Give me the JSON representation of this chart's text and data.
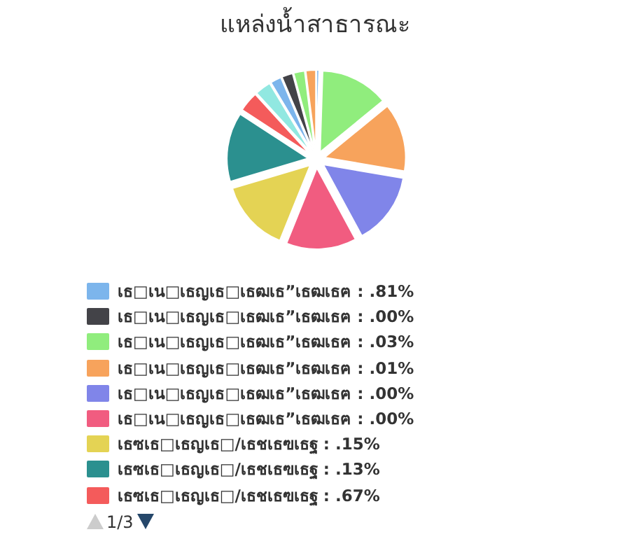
{
  "chart_data": {
    "type": "pie",
    "title": "แหล่งน้ำสาธารณะ",
    "categories": [
      "เธ□เน□เธญเธ□เธฒเธ”เธฒเธฅ : .81%",
      "เธ□เน□เธญเธ□เธฒเธ”เธฒเธฅ : .00%",
      "เธ□เน□เธญเธ□เธฒเธ”เธฒเธฅ : .03%",
      "เธ□เน□เธญเธ□เธฒเธ”เธฒเธฅ : .01%",
      "เธ□เน□เธญเธ□เธฒเธ”เธฒเธฅ : .00%",
      "เธ□เน□เธญเธ□เธฒเธ”เธฒเธฅ : .00%",
      "เธซเธ□เธญเธ□/เธชเธฃเธฐ : .15%",
      "เธซเธ□เธญเธ□/เธชเธฃเธฐ : .13%",
      "เธซเธ□เธญเธ□/เธชเธฃเธฐ : .67%",
      null,
      null,
      null,
      null,
      null
    ],
    "values": [
      0.5,
      0,
      13.6,
      13.6,
      14.4,
      14.0,
      14.3,
      13.8,
      4.0,
      3.2,
      2.2,
      2.2,
      2.2,
      2.0
    ],
    "colors": [
      "#7cb5ec",
      "#434348",
      "#90ed7d",
      "#f7a35c",
      "#8085e9",
      "#f15c80",
      "#e4d354",
      "#2b908f",
      "#f45b5b",
      "#91e8e1",
      "#7cb5ec",
      "#434348",
      "#90ed7d",
      "#f7a35c"
    ],
    "legend": "bottom",
    "annotations": [
      "1/3"
    ]
  }
}
